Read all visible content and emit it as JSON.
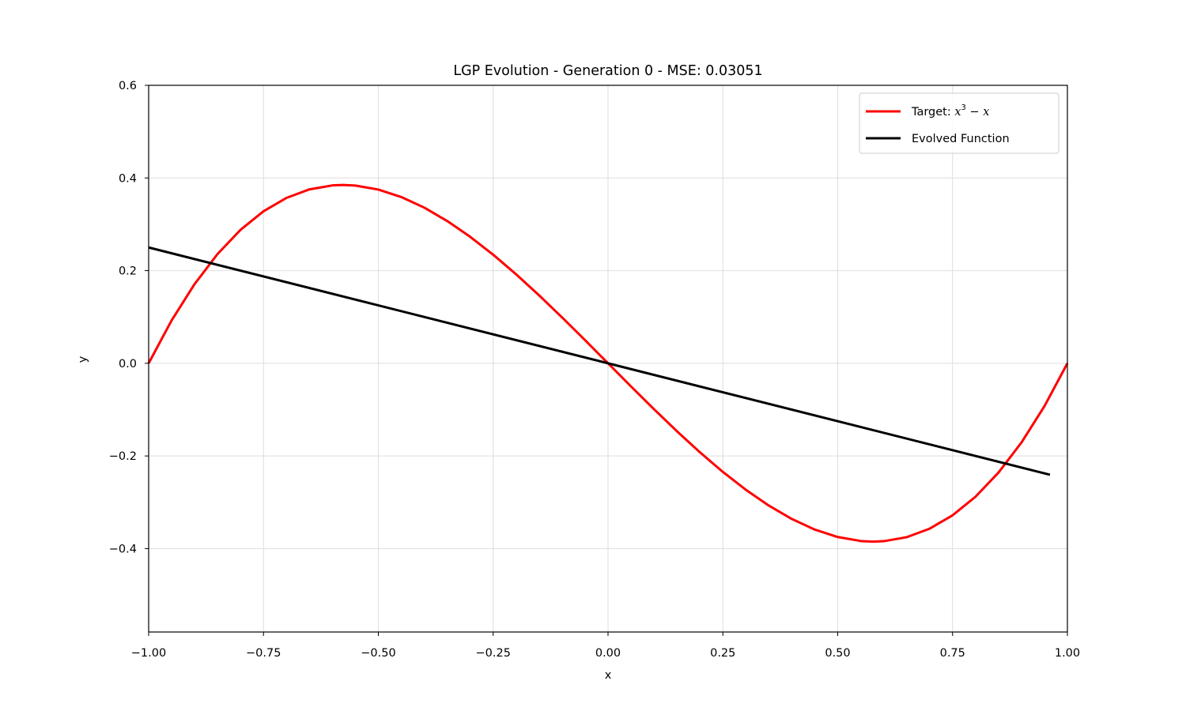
{
  "chart_data": {
    "type": "line",
    "title": "LGP Evolution - Generation 0 - MSE: 0.03051",
    "xlabel": "x",
    "ylabel": "y",
    "xlim": [
      -1.0,
      1.0
    ],
    "ylim": [
      -0.58,
      0.6
    ],
    "grid": true,
    "legend_position": "top-right",
    "x_ticks": [
      {
        "value": -1.0,
        "label": "−1.00"
      },
      {
        "value": -0.75,
        "label": "−0.75"
      },
      {
        "value": -0.5,
        "label": "−0.50"
      },
      {
        "value": -0.25,
        "label": "−0.25"
      },
      {
        "value": 0.0,
        "label": "0.00"
      },
      {
        "value": 0.25,
        "label": "0.25"
      },
      {
        "value": 0.5,
        "label": "0.50"
      },
      {
        "value": 0.75,
        "label": "0.75"
      },
      {
        "value": 1.0,
        "label": "1.00"
      }
    ],
    "y_ticks": [
      {
        "value": -0.4,
        "label": "−0.4"
      },
      {
        "value": -0.2,
        "label": "−0.2"
      },
      {
        "value": 0.0,
        "label": "0.0"
      },
      {
        "value": 0.2,
        "label": "0.2"
      },
      {
        "value": 0.4,
        "label": "0.4"
      },
      {
        "value": 0.6,
        "label": "0.6"
      }
    ],
    "series": [
      {
        "name": "Target: x³ − x",
        "legend_prefix": "Target: ",
        "legend_math": "x",
        "legend_sup": "3",
        "legend_math_rest": " − x",
        "color": "#ff0000",
        "x": [
          -1.0,
          -0.95,
          -0.9,
          -0.85,
          -0.8,
          -0.75,
          -0.7,
          -0.65,
          -0.6,
          -0.577,
          -0.55,
          -0.5,
          -0.45,
          -0.4,
          -0.35,
          -0.3,
          -0.25,
          -0.2,
          -0.15,
          -0.1,
          -0.05,
          0.0,
          0.05,
          0.1,
          0.15,
          0.2,
          0.25,
          0.3,
          0.35,
          0.4,
          0.45,
          0.5,
          0.55,
          0.577,
          0.6,
          0.65,
          0.7,
          0.75,
          0.8,
          0.85,
          0.9,
          0.95,
          1.0
        ],
        "y": [
          0.0,
          0.0926,
          0.171,
          0.2359,
          0.288,
          0.3281,
          0.357,
          0.3754,
          0.384,
          0.3849,
          0.3836,
          0.375,
          0.3589,
          0.336,
          0.3071,
          0.273,
          0.2344,
          0.192,
          0.1466,
          0.099,
          0.0499,
          0.0,
          -0.0499,
          -0.099,
          -0.1466,
          -0.192,
          -0.2344,
          -0.273,
          -0.3071,
          -0.336,
          -0.3589,
          -0.375,
          -0.3836,
          -0.3849,
          -0.384,
          -0.3754,
          -0.357,
          -0.3281,
          -0.288,
          -0.2359,
          -0.171,
          -0.0926,
          0.0
        ]
      },
      {
        "name": "Evolved Function",
        "color": "#000000",
        "x": [
          -1.0,
          0.0,
          0.962
        ],
        "y": [
          0.25,
          0.0,
          -0.2405
        ]
      }
    ]
  }
}
